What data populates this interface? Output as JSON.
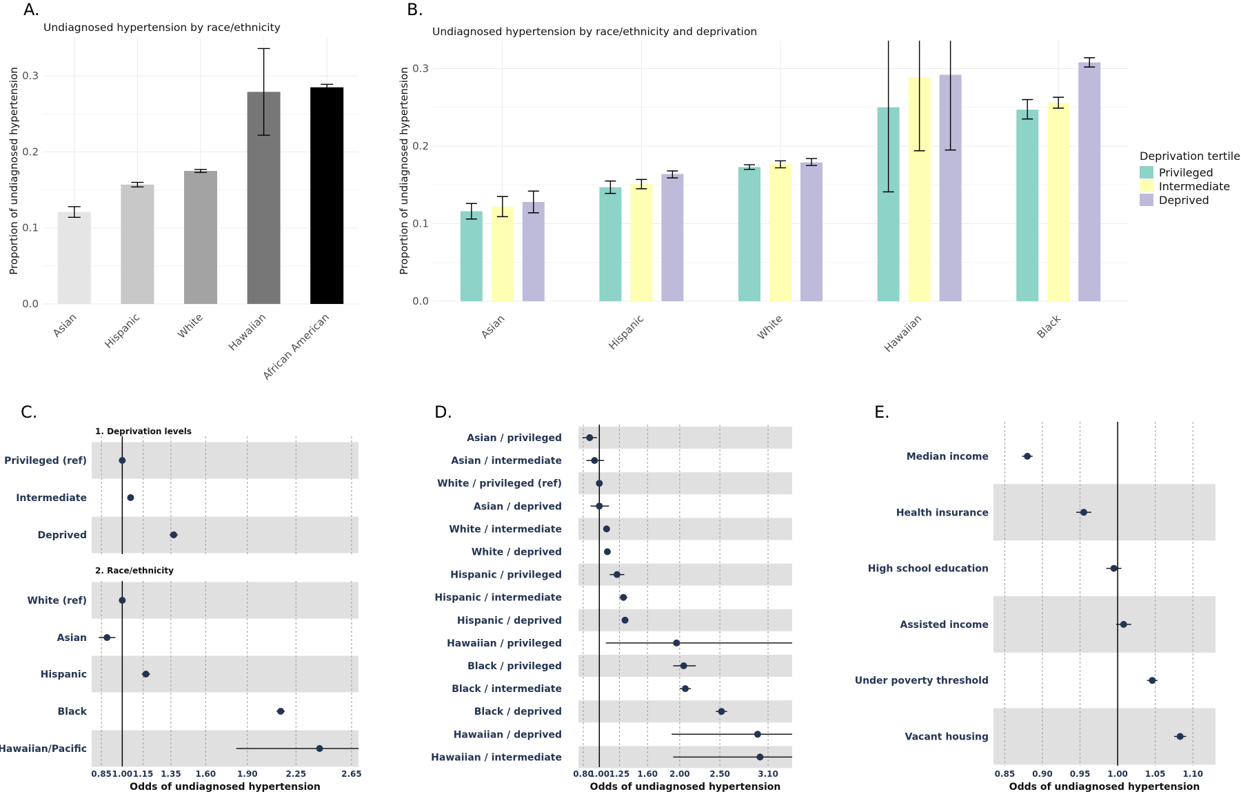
{
  "panels": {
    "A": {
      "label": "A.",
      "title": "Undiagnosed hypertension by race/ethnicity"
    },
    "B": {
      "label": "B.",
      "title": "Undiagnosed hypertension by race/ethnicity and deprivation"
    },
    "C": {
      "label": "C."
    },
    "D": {
      "label": "D."
    },
    "E": {
      "label": "E."
    }
  },
  "colors": {
    "privileged": "#8dd3c7",
    "intermediate": "#ffffb3",
    "deprived": "#bebada",
    "asian": "#e5e5e5",
    "hispanic": "#c8c8c8",
    "white": "#a3a3a3",
    "hawaiian": "#777777",
    "african_american": "#000000",
    "point": "#243553",
    "band": "#e0e0e0"
  },
  "chart_data": [
    {
      "id": "A",
      "type": "bar",
      "title": "Undiagnosed hypertension by race/ethnicity",
      "xlabel": "",
      "ylabel": "Proportion of undiagnosed hypertension",
      "categories": [
        "Asian",
        "Hispanic",
        "White",
        "Hawaiian",
        "African American"
      ],
      "values": [
        0.121,
        0.157,
        0.175,
        0.279,
        0.285
      ],
      "error_low": [
        0.114,
        0.154,
        0.173,
        0.222,
        0.282
      ],
      "error_high": [
        0.128,
        0.16,
        0.177,
        0.336,
        0.289
      ],
      "bar_colors": [
        "#e5e5e5",
        "#c8c8c8",
        "#a3a3a3",
        "#777777",
        "#000000"
      ],
      "ylim": [
        0,
        0.35
      ],
      "yticks": [
        0.0,
        0.1,
        0.2,
        0.3
      ],
      "ytick_labels": [
        "0.0",
        "0.1",
        "0.2",
        "0.3"
      ],
      "grid": true
    },
    {
      "id": "B",
      "type": "bar",
      "title": "Undiagnosed hypertension by race/ethnicity and deprivation",
      "xlabel": "",
      "ylabel": "Proportion of undiagnosed hypertension",
      "categories": [
        "Asian",
        "Hispanic",
        "White",
        "Hawaiian",
        "Black"
      ],
      "legend_title": "Deprivation tertile",
      "legend_position": "right",
      "series": [
        {
          "name": "Privileged",
          "color": "#8dd3c7",
          "values": [
            0.116,
            0.147,
            0.173,
            0.25,
            0.247
          ],
          "error_low": [
            0.106,
            0.139,
            0.17,
            0.141,
            0.235
          ],
          "error_high": [
            0.126,
            0.155,
            0.176,
            0.336,
            0.26
          ]
        },
        {
          "name": "Intermediate",
          "color": "#ffffb3",
          "values": [
            0.122,
            0.151,
            0.177,
            0.289,
            0.256
          ],
          "error_low": [
            0.109,
            0.145,
            0.172,
            0.194,
            0.249
          ],
          "error_high": [
            0.135,
            0.157,
            0.181,
            0.336,
            0.263
          ]
        },
        {
          "name": "Deprived",
          "color": "#bebada",
          "values": [
            0.128,
            0.164,
            0.179,
            0.292,
            0.308
          ],
          "error_low": [
            0.114,
            0.159,
            0.175,
            0.195,
            0.302
          ],
          "error_high": [
            0.142,
            0.168,
            0.184,
            0.336,
            0.314
          ]
        }
      ],
      "ylim": [
        0,
        0.336
      ],
      "yticks": [
        0.0,
        0.1,
        0.2,
        0.3
      ],
      "ytick_labels": [
        "0.0",
        "0.1",
        "0.2",
        "0.3"
      ],
      "grid": true
    },
    {
      "id": "C",
      "type": "scatter",
      "subtype": "forest",
      "xlabel": "Odds of undiagnosed hypertension",
      "xlim": [
        0.78,
        2.7
      ],
      "xticks": [
        0.85,
        1.0,
        1.15,
        1.35,
        1.6,
        1.9,
        2.25,
        2.65
      ],
      "xtick_labels": [
        "0.85",
        "1.00",
        "1.15",
        "1.35",
        "1.60",
        "1.90",
        "2.25",
        "2.65"
      ],
      "reference": 1.0,
      "groups": [
        {
          "title": "1. Deprivation levels",
          "rows": [
            {
              "label": "Privileged (ref)",
              "estimate": 1.0,
              "low": 1.0,
              "high": 1.0
            },
            {
              "label": "Intermediate",
              "estimate": 1.06,
              "low": 1.04,
              "high": 1.08
            },
            {
              "label": "Deprived",
              "estimate": 1.37,
              "low": 1.34,
              "high": 1.4
            }
          ]
        },
        {
          "title": "2. Race/ethnicity",
          "rows": [
            {
              "label": "White (ref)",
              "estimate": 1.0,
              "low": 1.0,
              "high": 1.0
            },
            {
              "label": "Asian",
              "estimate": 0.89,
              "low": 0.83,
              "high": 0.95
            },
            {
              "label": "Hispanic",
              "estimate": 1.17,
              "low": 1.14,
              "high": 1.2
            },
            {
              "label": "Black",
              "estimate": 2.14,
              "low": 2.11,
              "high": 2.17
            },
            {
              "label": "Hawaiian/Pacific",
              "estimate": 2.42,
              "low": 1.82,
              "high": 2.7
            }
          ]
        }
      ]
    },
    {
      "id": "D",
      "type": "scatter",
      "subtype": "forest",
      "xlabel": "Odds of undiagnosed hypertension",
      "xlim": [
        0.74,
        3.4
      ],
      "xticks": [
        0.8,
        1.0,
        1.25,
        1.6,
        2.0,
        2.5,
        3.1
      ],
      "xtick_labels": [
        "0.80",
        "1.00",
        "1.25",
        "1.60",
        "2.00",
        "2.50",
        "3.10"
      ],
      "reference": 1.0,
      "rows": [
        {
          "label": "Asian / privileged",
          "estimate": 0.88,
          "low": 0.79,
          "high": 0.97
        },
        {
          "label": "Asian / intermediate",
          "estimate": 0.94,
          "low": 0.84,
          "high": 1.06
        },
        {
          "label": "White / privileged (ref)",
          "estimate": 1.0,
          "low": 1.0,
          "high": 1.0
        },
        {
          "label": "Asian / deprived",
          "estimate": 1.0,
          "low": 0.89,
          "high": 1.12
        },
        {
          "label": "White / intermediate",
          "estimate": 1.09,
          "low": 1.06,
          "high": 1.12
        },
        {
          "label": "White / deprived",
          "estimate": 1.1,
          "low": 1.07,
          "high": 1.13
        },
        {
          "label": "Hispanic / privileged",
          "estimate": 1.22,
          "low": 1.13,
          "high": 1.31
        },
        {
          "label": "Hispanic / intermediate",
          "estimate": 1.3,
          "low": 1.25,
          "high": 1.35
        },
        {
          "label": "Hispanic / deprived",
          "estimate": 1.32,
          "low": 1.28,
          "high": 1.36
        },
        {
          "label": "Hawaiian / privileged",
          "estimate": 1.96,
          "low": 1.08,
          "high": 3.4
        },
        {
          "label": "Black / privileged",
          "estimate": 2.05,
          "low": 1.92,
          "high": 2.2
        },
        {
          "label": "Black / intermediate",
          "estimate": 2.07,
          "low": 2.0,
          "high": 2.14
        },
        {
          "label": "Black / deprived",
          "estimate": 2.52,
          "low": 2.45,
          "high": 2.59
        },
        {
          "label": "Hawaiian / deprived",
          "estimate": 2.97,
          "low": 1.9,
          "high": 3.4
        },
        {
          "label": "Hawaiian / intermediate",
          "estimate": 3.0,
          "low": 1.92,
          "high": 3.4
        }
      ]
    },
    {
      "id": "E",
      "type": "scatter",
      "subtype": "forest",
      "xlabel": "Odds of undiagnosed hypertension",
      "xlim": [
        0.835,
        1.13
      ],
      "xticks": [
        0.85,
        0.9,
        0.95,
        1.0,
        1.05,
        1.1
      ],
      "xtick_labels": [
        "0.85",
        "0.90",
        "0.95",
        "1.00",
        "1.05",
        "1.10"
      ],
      "reference": 1.0,
      "rows": [
        {
          "label": "Median income",
          "estimate": 0.88,
          "low": 0.873,
          "high": 0.887
        },
        {
          "label": "Health insurance",
          "estimate": 0.955,
          "low": 0.945,
          "high": 0.965
        },
        {
          "label": "High school education",
          "estimate": 0.995,
          "low": 0.985,
          "high": 1.005
        },
        {
          "label": "Assisted income",
          "estimate": 1.008,
          "low": 0.998,
          "high": 1.018
        },
        {
          "label": "Under poverty threshold",
          "estimate": 1.046,
          "low": 1.039,
          "high": 1.053
        },
        {
          "label": "Vacant housing",
          "estimate": 1.083,
          "low": 1.075,
          "high": 1.091
        }
      ]
    }
  ]
}
